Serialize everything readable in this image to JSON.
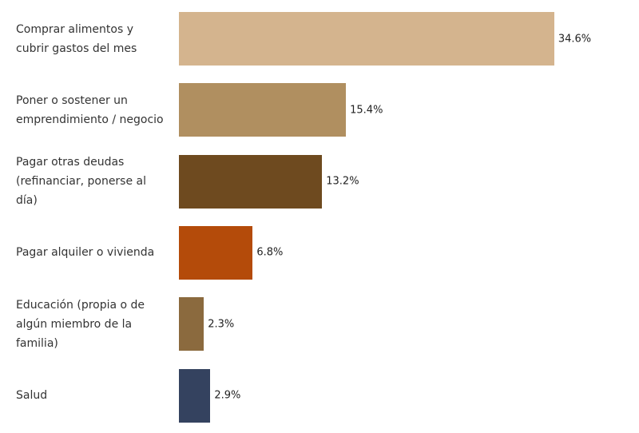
{
  "chart_data": {
    "type": "bar",
    "orientation": "horizontal",
    "categories": [
      "Comprar alimentos y cubrir gastos del mes",
      "Poner o sostener un emprendimiento / negocio",
      "Pagar otras deudas (refinanciar, ponerse al día)",
      "Pagar alquiler o vivienda",
      "Educación (propia o de algún miembro de la familia)",
      "Salud"
    ],
    "values": [
      34.6,
      15.4,
      13.2,
      6.8,
      2.3,
      2.9
    ],
    "value_labels": [
      "34.6%",
      "15.4%",
      "13.2%",
      "6.8%",
      "2.3%",
      "2.9%"
    ],
    "colors": [
      "#d4b48e",
      "#b08f60",
      "#6e4a1f",
      "#b44b0a",
      "#8b6a3e",
      "#34425f"
    ]
  }
}
